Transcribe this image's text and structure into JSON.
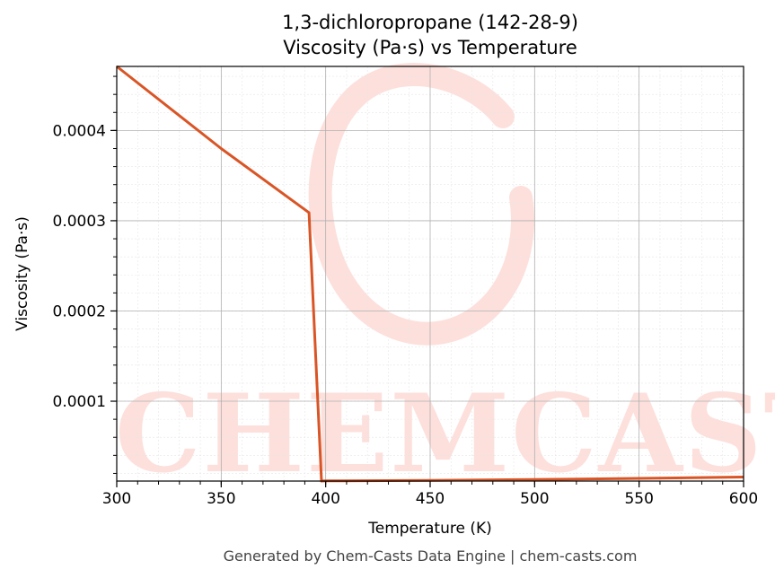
{
  "chart_data": {
    "type": "line",
    "title": "1,3-dichloropropane (142-28-9)",
    "subtitle": "Viscosity (Pa·s) vs Temperature",
    "xlabel": "Temperature (K)",
    "ylabel": "Viscosity (Pa·s)",
    "xlim": [
      300,
      600
    ],
    "ylim": [
      1.15e-05,
      0.000471
    ],
    "x_ticks": [
      300,
      350,
      400,
      450,
      500,
      550,
      600
    ],
    "x_tick_labels": [
      "300",
      "350",
      "400",
      "450",
      "500",
      "550",
      "600"
    ],
    "y_ticks": [
      0.0001,
      0.0002,
      0.0003,
      0.0004
    ],
    "y_tick_labels": [
      "0.0001",
      "0.0002",
      "0.0003",
      "0.0004"
    ],
    "grid": true,
    "series": [
      {
        "color": "#d95526",
        "x": [
          300,
          350,
          392,
          398,
          400,
          450,
          500,
          550,
          600
        ],
        "y": [
          0.000471,
          0.00038,
          0.000309,
          1.15e-05,
          1.17e-05,
          1.22e-05,
          1.32e-05,
          1.45e-05,
          1.6e-05
        ]
      }
    ]
  },
  "watermark": {
    "text": "CHEMCASTS",
    "color": "#fde0dc"
  },
  "footer": "Generated by Chem-Casts Data Engine | chem-casts.com"
}
